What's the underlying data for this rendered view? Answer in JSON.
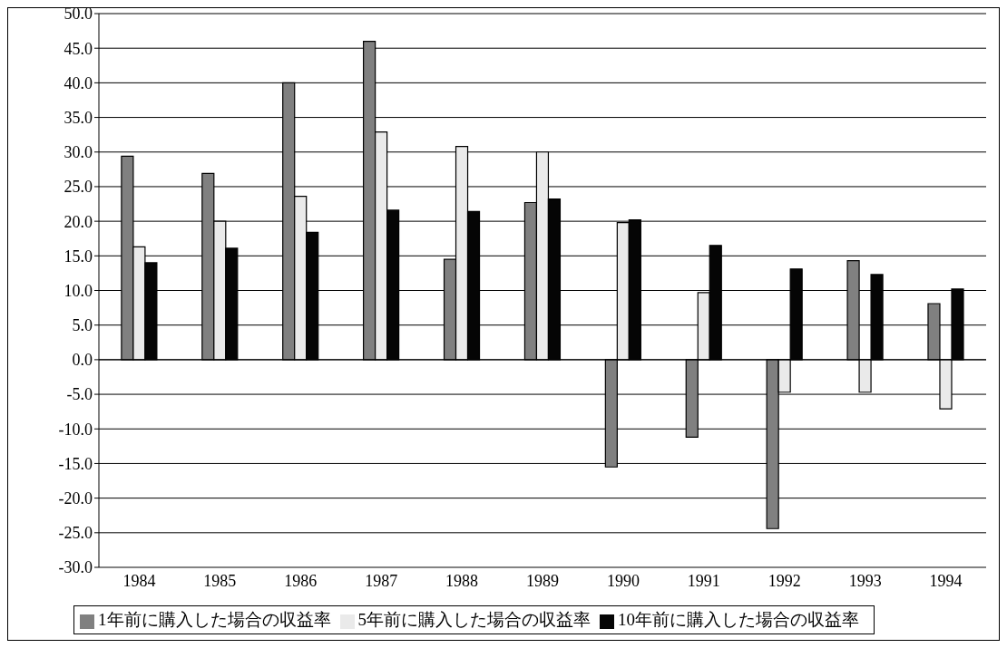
{
  "chart_data": {
    "type": "bar",
    "categories": [
      "1984",
      "1985",
      "1986",
      "1987",
      "1988",
      "1989",
      "1990",
      "1991",
      "1992",
      "1993",
      "1994"
    ],
    "series": [
      {
        "name": "1年前に購入した場合の収益率",
        "color": "#808080",
        "values": [
          29.4,
          26.9,
          40.0,
          46.0,
          14.5,
          22.7,
          -15.5,
          -11.2,
          -24.4,
          14.3,
          8.1
        ]
      },
      {
        "name": "5年前に購入した場合の収益率",
        "color": "#eaeaea",
        "values": [
          16.3,
          20.0,
          23.6,
          32.9,
          30.8,
          30.0,
          19.8,
          9.7,
          -4.7,
          -4.7,
          -7.1
        ]
      },
      {
        "name": "10年前に購入した場合の収益率",
        "color": "#050505",
        "values": [
          14.0,
          16.1,
          18.4,
          21.6,
          21.4,
          23.2,
          20.2,
          16.5,
          13.1,
          12.3,
          10.2
        ]
      }
    ],
    "ylim": [
      -30,
      50
    ],
    "yticks": [
      {
        "value": 50,
        "label": "50.0"
      },
      {
        "value": 45,
        "label": "45.0"
      },
      {
        "value": 40,
        "label": "40.0"
      },
      {
        "value": 35,
        "label": "35.0"
      },
      {
        "value": 30,
        "label": "30.0"
      },
      {
        "value": 25,
        "label": "25.0"
      },
      {
        "value": 20,
        "label": "20.0"
      },
      {
        "value": 15,
        "label": "15.0"
      },
      {
        "value": 10,
        "label": "10.0"
      },
      {
        "value": 5,
        "label": "5.0"
      },
      {
        "value": 0,
        "label": "0.0"
      },
      {
        "value": -5,
        "label": "-5.0"
      },
      {
        "value": -10,
        "label": "-10.0"
      },
      {
        "value": -15,
        "label": "-15.0"
      },
      {
        "value": -20,
        "label": "-20.0"
      },
      {
        "value": -25,
        "label": "-25.0"
      },
      {
        "value": -30,
        "label": "-30.0"
      }
    ],
    "grid": "y",
    "legend": "bottom"
  }
}
